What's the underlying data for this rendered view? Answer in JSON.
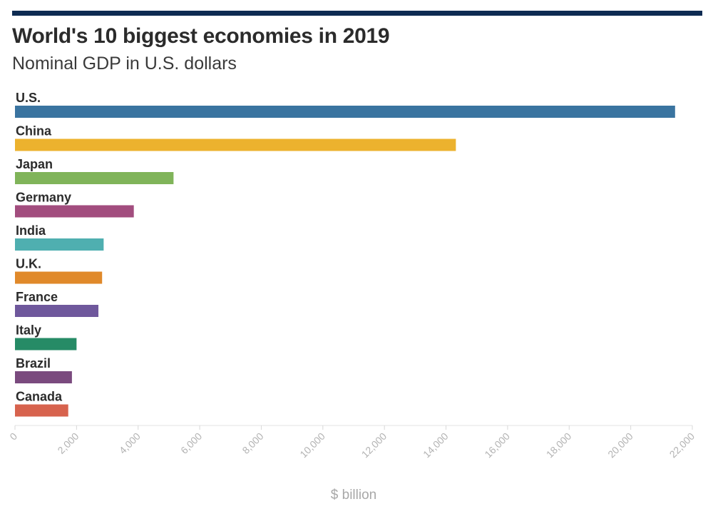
{
  "chart_data": {
    "type": "bar",
    "orientation": "horizontal",
    "title": "World's 10 biggest economies in 2019",
    "subtitle": "Nominal GDP in U.S. dollars",
    "xlabel": "$ billion",
    "ylabel": "",
    "xlim": [
      0,
      22000
    ],
    "ticks": [
      "0",
      "2,000",
      "4,000",
      "6,000",
      "8,000",
      "10,000",
      "12,000",
      "14,000",
      "16,000",
      "18,000",
      "20,000",
      "22,000"
    ],
    "tick_values": [
      0,
      2000,
      4000,
      6000,
      8000,
      10000,
      12000,
      14000,
      16000,
      18000,
      20000,
      22000
    ],
    "categories": [
      "U.S.",
      "China",
      "Japan",
      "Germany",
      "India",
      "U.K.",
      "France",
      "Italy",
      "Brazil",
      "Canada"
    ],
    "values": [
      21440,
      14320,
      5150,
      3860,
      2880,
      2830,
      2710,
      2000,
      1850,
      1730
    ],
    "colors": [
      "#3a74a0",
      "#ecb22e",
      "#80b45a",
      "#a24d7e",
      "#4fafb0",
      "#e0892a",
      "#6f589c",
      "#268b66",
      "#7a4a7e",
      "#d7634e"
    ],
    "grid": false,
    "legend": "none"
  }
}
